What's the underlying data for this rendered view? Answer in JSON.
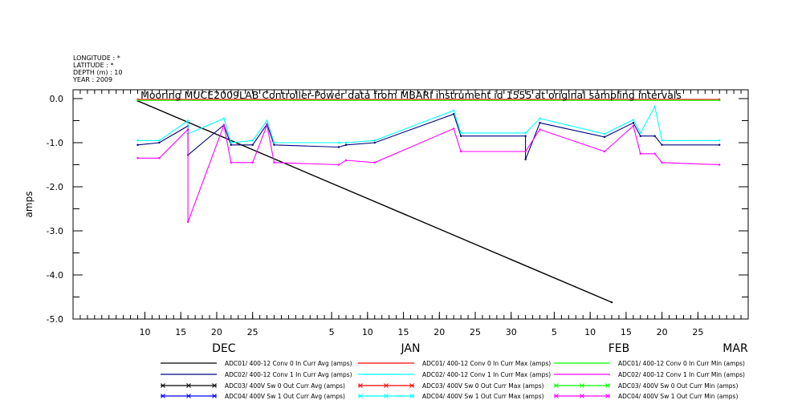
{
  "metadata": {
    "longitude": "LONGITUDE : *",
    "latitude": "LATITUDE : *",
    "depth": "DEPTH (m) : 10",
    "year": "YEAR : 2009"
  },
  "colors": {
    "black": "#000000",
    "navy": "#000080",
    "blue": "#0000ff",
    "cyan": "#00ffff",
    "red": "#ff0000",
    "green": "#00ff00",
    "magenta": "#ff00ff"
  },
  "chart_data": {
    "type": "line",
    "title": "Mooring MUCE2009LAB Controller-Power data from MBARI instrument id 1555 at original sampling intervals",
    "ylabel": "amps",
    "xlabel": "",
    "ylim": [
      -5.0,
      0.2
    ],
    "xlim": [
      "2009-11-30",
      "2010-03-04"
    ],
    "yticks": [
      "0.0",
      "-1.0",
      "-2.0",
      "-3.0",
      "-4.0",
      "-5.0"
    ],
    "ytick_values": [
      0,
      -1,
      -2,
      -3,
      -4,
      -5
    ],
    "xtick_labels": [
      "10",
      "15",
      "20",
      "25",
      "5",
      "10",
      "15",
      "20",
      "25",
      "30",
      "5",
      "10",
      "15",
      "20",
      "25"
    ],
    "xtick_dates": [
      "2009-12-10",
      "2009-12-15",
      "2009-12-20",
      "2009-12-25",
      "2010-01-05",
      "2010-01-10",
      "2010-01-15",
      "2010-01-20",
      "2010-01-25",
      "2010-01-30",
      "2010-02-05",
      "2010-02-10",
      "2010-02-15",
      "2010-02-20",
      "2010-02-25"
    ],
    "months": [
      {
        "label": "DEC",
        "date": "2009-12-21"
      },
      {
        "label": "JAN",
        "date": "2010-01-16"
      },
      {
        "label": "FEB",
        "date": "2010-02-14"
      },
      {
        "label": "MAR",
        "date": "2010-03-04"
      }
    ],
    "series": [
      {
        "name": "ADC01/ 400-12 Conv 0 In Curr Avg (amps)",
        "color": "#000000",
        "marker": "none",
        "x": [
          "2009-12-09",
          "2010-02-13"
        ],
        "y": [
          -0.05,
          -4.62
        ]
      },
      {
        "name": "ADC02/ 400-12 Conv 1 In Curr Avg (amps)",
        "color": "#000080",
        "marker": "none",
        "x": [
          "2009-12-09",
          "2009-12-12",
          "2009-12-16",
          "2009-12-16",
          "2009-12-21",
          "2009-12-22",
          "2009-12-25",
          "2009-12-27",
          "2009-12-28",
          "2010-01-06",
          "2010-01-07",
          "2010-01-11",
          "2010-01-22",
          "2010-01-23",
          "2010-02-01",
          "2010-02-01",
          "2010-02-03",
          "2010-02-12",
          "2010-02-16",
          "2010-02-17",
          "2010-02-19",
          "2010-02-20",
          "2010-02-28"
        ],
        "y": [
          -1.05,
          -1.0,
          -0.62,
          -1.28,
          -0.6,
          -1.05,
          -1.05,
          -0.58,
          -1.05,
          -1.1,
          -1.05,
          -1.0,
          -0.35,
          -0.85,
          -0.85,
          -1.38,
          -0.55,
          -0.87,
          -0.55,
          -0.85,
          -0.85,
          -1.05,
          -1.05
        ]
      },
      {
        "name": "ADC02/ 400-12 Conv 1 In Curr Max (amps)",
        "color": "#00ffff",
        "marker": "none",
        "x": [
          "2009-12-09",
          "2009-12-12",
          "2009-12-16",
          "2009-12-16",
          "2009-12-21",
          "2009-12-22",
          "2009-12-25",
          "2009-12-27",
          "2009-12-28",
          "2010-01-06",
          "2010-01-07",
          "2010-01-11",
          "2010-01-22",
          "2010-01-23",
          "2010-02-01",
          "2010-02-03",
          "2010-02-12",
          "2010-02-16",
          "2010-02-17",
          "2010-02-19",
          "2010-02-20",
          "2010-02-28"
        ],
        "y": [
          -0.95,
          -0.95,
          -0.5,
          -0.8,
          -0.45,
          -1.0,
          -0.95,
          -0.5,
          -1.0,
          -1.0,
          -1.0,
          -0.95,
          -0.27,
          -0.78,
          -0.78,
          -0.45,
          -0.8,
          -0.48,
          -0.78,
          -0.18,
          -0.95,
          -0.95
        ]
      },
      {
        "name": "ADC02/ 400-12 Conv 1 In Curr Min (amps)",
        "color": "#ff00ff",
        "marker": "none",
        "x": [
          "2009-12-09",
          "2009-12-12",
          "2009-12-16",
          "2009-12-16",
          "2009-12-21",
          "2009-12-22",
          "2009-12-25",
          "2009-12-27",
          "2009-12-28",
          "2010-01-06",
          "2010-01-07",
          "2010-01-11",
          "2010-01-22",
          "2010-01-23",
          "2010-02-01",
          "2010-02-03",
          "2010-02-12",
          "2010-02-16",
          "2010-02-17",
          "2010-02-19",
          "2010-02-20",
          "2010-02-28"
        ],
        "y": [
          -1.35,
          -1.35,
          -0.7,
          -2.8,
          -0.6,
          -1.45,
          -1.45,
          -0.6,
          -1.45,
          -1.5,
          -1.4,
          -1.45,
          -0.68,
          -1.2,
          -1.2,
          -0.7,
          -1.2,
          -0.62,
          -1.25,
          -1.25,
          -1.45,
          -1.5
        ]
      },
      {
        "name": "ADC01/ 400-12 Conv 0 In Curr Max (amps)",
        "color": "#ff0000",
        "marker": "none",
        "x": [
          "2009-12-09",
          "2010-02-28"
        ],
        "y": [
          -0.02,
          -0.02
        ]
      },
      {
        "name": "ADC01/ 400-12 Conv 0 In Curr Min (amps)",
        "color": "#00ff00",
        "marker": "none",
        "x": [
          "2009-12-09",
          "2010-02-28"
        ],
        "y": [
          -0.04,
          -0.04
        ]
      }
    ],
    "legend": {
      "placement": "bottom",
      "entries": [
        {
          "label": "ADC01/ 400-12 Conv 0 In Curr Avg (amps)",
          "color": "#000000",
          "marker": "none"
        },
        {
          "label": "ADC01/ 400-12 Conv 0 In Curr Max (amps)",
          "color": "#ff0000",
          "marker": "none"
        },
        {
          "label": "ADC01/ 400-12 Conv 0 In Curr Min (amps)",
          "color": "#00ff00",
          "marker": "none"
        },
        {
          "label": "ADC02/ 400-12 Conv 1 In Curr Avg (amps)",
          "color": "#000080",
          "marker": "none"
        },
        {
          "label": "ADC02/ 400-12 Conv 1 In Curr Max (amps)",
          "color": "#00ffff",
          "marker": "none"
        },
        {
          "label": "ADC02/ 400-12 Conv 1 In Curr Min (amps)",
          "color": "#ff00ff",
          "marker": "none"
        },
        {
          "label": "ADC03/ 400V Sw 0 Out Curr Avg (amps)",
          "color": "#000000",
          "marker": "x"
        },
        {
          "label": "ADC03/ 400V Sw 0 Out Curr Max (amps)",
          "color": "#ff0000",
          "marker": "x"
        },
        {
          "label": "ADC03/ 400V Sw 0 Out Curr Min (amps)",
          "color": "#00ff00",
          "marker": "x"
        },
        {
          "label": "ADC04/ 400V Sw 1 Out Curr Avg (amps)",
          "color": "#0000ff",
          "marker": "x"
        },
        {
          "label": "ADC04/ 400V Sw 1 Out Curr Max (amps)",
          "color": "#00ffff",
          "marker": "x"
        },
        {
          "label": "ADC04/ 400V Sw 1 Out Curr Min (amps)",
          "color": "#ff00ff",
          "marker": "x"
        }
      ]
    }
  }
}
